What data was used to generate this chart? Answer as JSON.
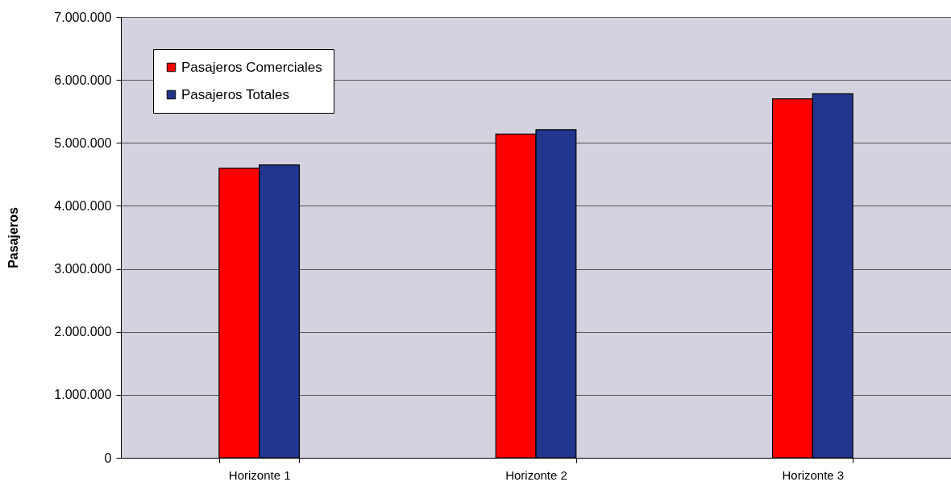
{
  "chart_data": {
    "type": "bar",
    "ylabel": "Pasajeros",
    "categories": [
      "Horizonte 1",
      "Horizonte 2",
      "Horizonte 3"
    ],
    "series": [
      {
        "name": "Pasajeros Comerciales",
        "color": "#ff0000",
        "values": [
          4600000,
          5140000,
          5700000
        ]
      },
      {
        "name": "Pasajeros Totales",
        "color": "#22358f",
        "values": [
          4650000,
          5210000,
          5780000
        ]
      }
    ],
    "ylim": [
      0,
      7000000
    ],
    "yticks": [
      0,
      {
        "value": 1000000,
        "label": "1.000.000"
      },
      {
        "value": 2000000,
        "label": "2.000.000"
      },
      {
        "value": 3000000,
        "label": "3.000.000"
      },
      {
        "value": 4000000,
        "label": "4.000.000"
      },
      {
        "value": 5000000,
        "label": "5.000.000"
      },
      {
        "value": 6000000,
        "label": "6.000.000"
      },
      {
        "value": 7000000,
        "label": "7.000.000"
      }
    ],
    "grid": "y",
    "legend": "top left"
  }
}
